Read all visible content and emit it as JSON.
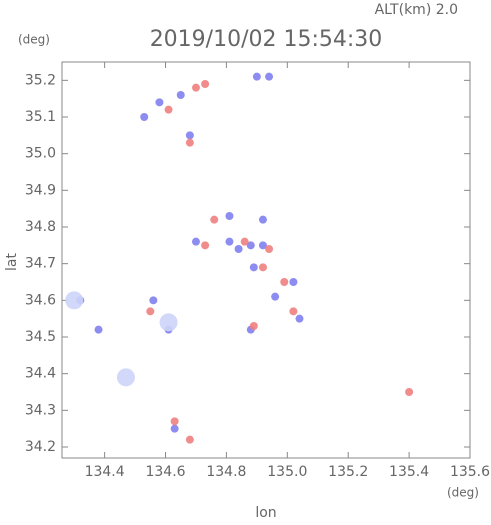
{
  "chart_data": {
    "type": "scatter",
    "title": "2019/10/02 15:54:30",
    "subtitle": "ALT(km) 2.0",
    "y_unit": "(deg)",
    "x_unit": "(deg)",
    "xlabel": "lon",
    "ylabel": "lat",
    "xlim": [
      134.26,
      135.6
    ],
    "ylim": [
      34.17,
      35.25
    ],
    "xticks": [
      134.4,
      134.6,
      134.8,
      135.0,
      135.2,
      135.4,
      135.6
    ],
    "yticks": [
      34.2,
      34.3,
      34.4,
      34.5,
      34.6,
      34.7,
      34.8,
      34.9,
      35.0,
      35.1,
      35.2
    ],
    "series": [
      {
        "color": "#7f7ff0",
        "x": [
          134.53,
          134.58,
          134.65,
          134.68,
          134.9,
          134.94,
          134.81,
          134.84,
          134.88,
          134.92,
          134.89,
          134.96,
          134.88,
          134.32,
          134.56,
          134.61,
          134.38,
          134.63,
          134.7,
          134.81,
          134.92,
          135.04,
          135.02
        ],
        "y": [
          35.1,
          35.14,
          35.16,
          35.05,
          35.21,
          35.21,
          34.76,
          34.74,
          34.75,
          34.75,
          34.69,
          34.61,
          34.52,
          34.6,
          34.6,
          34.52,
          34.52,
          34.25,
          34.76,
          34.83,
          34.82,
          34.55,
          34.65
        ]
      },
      {
        "color": "#f07f7f",
        "x": [
          134.7,
          134.73,
          134.68,
          134.61,
          134.76,
          134.86,
          134.94,
          134.92,
          134.99,
          134.89,
          134.63,
          134.68,
          135.4,
          135.02,
          134.73,
          134.55
        ],
        "y": [
          35.18,
          35.19,
          35.03,
          35.12,
          34.82,
          34.76,
          34.74,
          34.69,
          34.65,
          34.53,
          34.27,
          34.22,
          34.35,
          34.57,
          34.75,
          34.57
        ]
      },
      {
        "color": "#ccd4f8",
        "x": [
          134.3,
          134.47,
          134.61
        ],
        "y": [
          34.6,
          34.39,
          34.54
        ]
      }
    ]
  }
}
